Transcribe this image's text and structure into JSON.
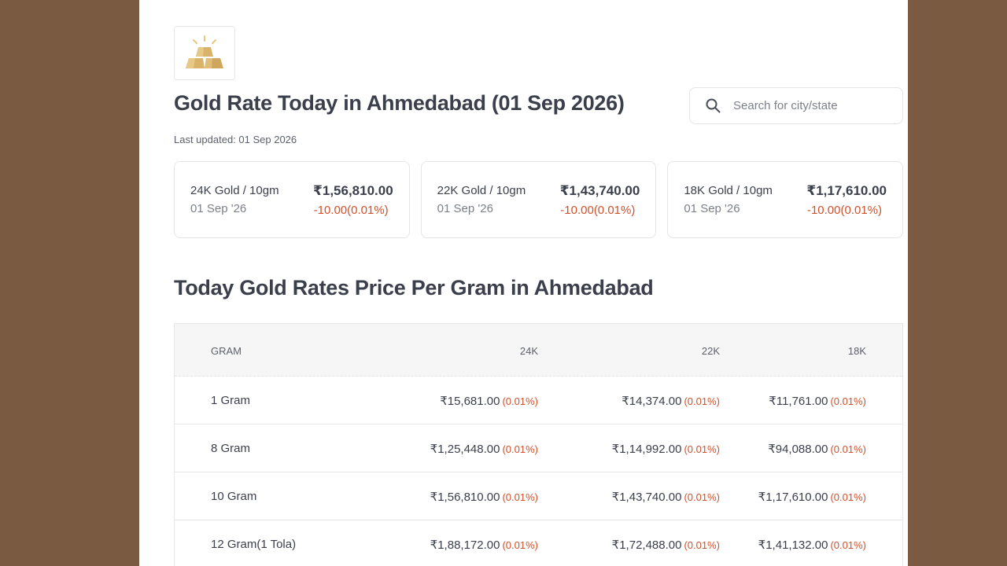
{
  "header": {
    "title": "Gold Rate Today in Ahmedabad (01 Sep 2026)",
    "last_updated": "Last updated: 01 Sep 2026"
  },
  "search": {
    "placeholder": "Search for city/state",
    "icon": "search-icon"
  },
  "logo": {
    "icon": "gold-bars-icon"
  },
  "colors": {
    "background": "#7a5a41",
    "negative_change": "#d0502a",
    "gold": "#d8b46a"
  },
  "cards": [
    {
      "title": "24K Gold / 10gm",
      "date": "01 Sep '26",
      "price": "₹1,56,810.00",
      "change": "-10.00(0.01%)"
    },
    {
      "title": "22K Gold / 10gm",
      "date": "01 Sep '26",
      "price": "₹1,43,740.00",
      "change": "-10.00(0.01%)"
    },
    {
      "title": "18K Gold / 10gm",
      "date": "01 Sep '26",
      "price": "₹1,17,610.00",
      "change": "-10.00(0.01%)"
    }
  ],
  "rates_section": {
    "title": "Today Gold Rates Price Per Gram in Ahmedabad",
    "columns": [
      "GRAM",
      "24K",
      "22K",
      "18K"
    ],
    "rows": [
      {
        "gram": "1 Gram",
        "k24": "₹15,681.00",
        "k24_pct": "(0.01%)",
        "k22": "₹14,374.00",
        "k22_pct": "(0.01%)",
        "k18": "₹11,761.00",
        "k18_pct": "(0.01%)"
      },
      {
        "gram": "8 Gram",
        "k24": "₹1,25,448.00",
        "k24_pct": "(0.01%)",
        "k22": "₹1,14,992.00",
        "k22_pct": "(0.01%)",
        "k18": "₹94,088.00",
        "k18_pct": "(0.01%)"
      },
      {
        "gram": "10 Gram",
        "k24": "₹1,56,810.00",
        "k24_pct": "(0.01%)",
        "k22": "₹1,43,740.00",
        "k22_pct": "(0.01%)",
        "k18": "₹1,17,610.00",
        "k18_pct": "(0.01%)"
      },
      {
        "gram": "12 Gram(1 Tola)",
        "k24": "₹1,88,172.00",
        "k24_pct": "(0.01%)",
        "k22": "₹1,72,488.00",
        "k22_pct": "(0.01%)",
        "k18": "₹1,41,132.00",
        "k18_pct": "(0.01%)"
      }
    ]
  }
}
